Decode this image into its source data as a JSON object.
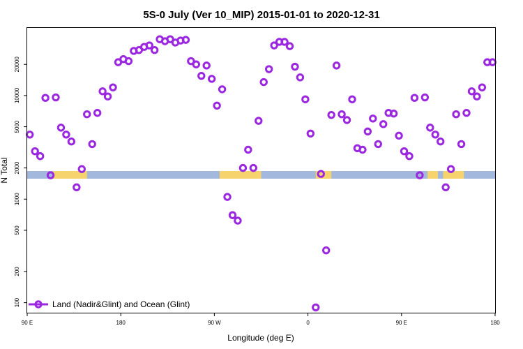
{
  "chart_data": {
    "type": "scatter",
    "title": "5S-0 July (Ver 10_MIP)   2015-01-01 to 2020-12-31",
    "xlabel": "Longitude (deg E)",
    "ylabel": "N Total",
    "xlim": [
      90,
      270
    ],
    "ylim": [
      80,
      45000
    ],
    "yscale": "log",
    "x_ticks": [
      {
        "value": 90,
        "label": "90 E"
      },
      {
        "value": 126,
        "label": "180"
      },
      {
        "value": 162,
        "label": "90 W"
      },
      {
        "value": 198,
        "label": "0"
      },
      {
        "value": 234,
        "label": "90 E"
      },
      {
        "value": 270,
        "label": "180"
      }
    ],
    "y_ticks": [
      {
        "value": 100,
        "label": "100"
      },
      {
        "value": 200,
        "label": "200"
      },
      {
        "value": 500,
        "label": "500"
      },
      {
        "value": 1000,
        "label": "1000"
      },
      {
        "value": 2000,
        "label": "2000"
      },
      {
        "value": 5000,
        "label": "5000"
      },
      {
        "value": 10000,
        "label": "10000"
      },
      {
        "value": 20000,
        "label": "20000"
      }
    ],
    "surface_band": {
      "ocean_color": "#a2b9dd",
      "land_color": "#f7d36e",
      "land_ranges": [
        [
          100,
          113
        ],
        [
          164,
          180
        ],
        [
          201,
          207
        ],
        [
          244,
          248
        ],
        [
          250,
          258
        ]
      ]
    },
    "series": [
      {
        "name": "Land (Nadir&Glint) and Ocean (Glint)",
        "color": "#9b28e0",
        "x": [
          91,
          93,
          95,
          97,
          99,
          101,
          103,
          105,
          107,
          109,
          111,
          113,
          115,
          117,
          119,
          121,
          123,
          125,
          127,
          129,
          131,
          133,
          135,
          137,
          139,
          141,
          143,
          145,
          147,
          149,
          151,
          153,
          155,
          157,
          159,
          161,
          163,
          165,
          167,
          169,
          171,
          173,
          175,
          177,
          179,
          181,
          183,
          185,
          187,
          189,
          191,
          193,
          195,
          197,
          199,
          201,
          203,
          205,
          207,
          209,
          211,
          213,
          215,
          217,
          219,
          221,
          223,
          225,
          227,
          229,
          231,
          233,
          235,
          237,
          239,
          241,
          243,
          245,
          247,
          249,
          251,
          253,
          255,
          257,
          259,
          261,
          263,
          265,
          267,
          269
        ],
        "y": [
          4200,
          2900,
          2600,
          9500,
          1700,
          9600,
          4900,
          4200,
          3600,
          1300,
          1950,
          6600,
          3400,
          6800,
          11000,
          9800,
          12000,
          21000,
          22500,
          21500,
          27000,
          27500,
          29500,
          30500,
          27500,
          35000,
          33500,
          35000,
          32500,
          34000,
          34500,
          21500,
          20000,
          15500,
          19500,
          14500,
          8000,
          11500,
          1050,
          700,
          620,
          2000,
          3000,
          2000,
          5700,
          13500,
          18000,
          30500,
          33000,
          33000,
          30000,
          19000,
          15000,
          9200,
          4300,
          90,
          1750,
          320,
          6500,
          19500,
          6600,
          5800,
          9200,
          3100,
          3000,
          4500,
          6000,
          3400,
          5300,
          6800,
          6700,
          4100,
          2900,
          2600,
          9500,
          1700,
          9600,
          4900,
          4200,
          3600,
          1300,
          1950,
          6600,
          3400,
          6800,
          11000,
          9800,
          12000,
          21000,
          21000
        ]
      }
    ],
    "legend": {
      "label": "Land (Nadir&Glint) and Ocean (Glint)",
      "position": "bottom-left"
    }
  }
}
